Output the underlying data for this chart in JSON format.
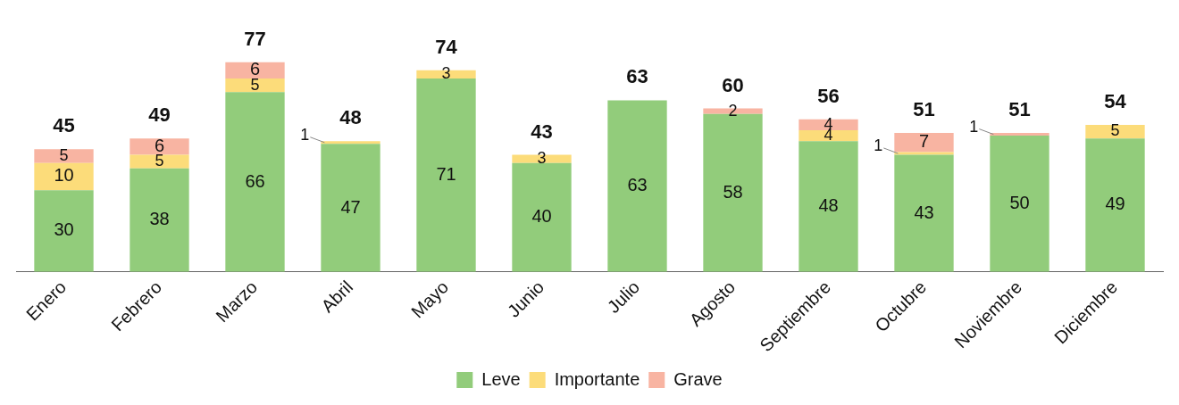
{
  "chart_data": {
    "type": "bar",
    "stacked": true,
    "categories": [
      "Enero",
      "Febrero",
      "Marzo",
      "Abril",
      "Mayo",
      "Junio",
      "Julio",
      "Agosto",
      "Septiembre",
      "Octubre",
      "Noviembre",
      "Diciembre"
    ],
    "series": [
      {
        "name": "Leve",
        "color": "#92cc7b",
        "values": [
          30,
          38,
          66,
          47,
          71,
          40,
          63,
          58,
          48,
          43,
          50,
          49
        ],
        "value_labels": [
          "30",
          "38",
          "66",
          "47",
          "71",
          "40",
          "63",
          "58",
          "48",
          "43",
          "50",
          "49"
        ]
      },
      {
        "name": "Importante",
        "color": "#fcdc7a",
        "values": [
          10,
          5,
          5,
          1,
          3,
          3,
          null,
          null,
          4,
          1,
          null,
          5
        ],
        "value_labels": [
          "10",
          "5",
          "5",
          "1",
          "3",
          "3",
          null,
          null,
          "4",
          "1",
          null,
          "5"
        ]
      },
      {
        "name": "Grave",
        "color": "#f8b4a2",
        "values": [
          5,
          6,
          6,
          null,
          null,
          null,
          null,
          2,
          4,
          7,
          1,
          null
        ],
        "value_labels": [
          "5",
          "6",
          "6",
          null,
          null,
          null,
          null,
          "2",
          "4",
          "7",
          "1",
          null
        ]
      }
    ],
    "totals": [
      "45",
      "49",
      "77",
      "48",
      "74",
      "43",
      "63",
      "60",
      "56",
      "51",
      "51",
      "54"
    ],
    "legend": "bottom",
    "grid": false
  }
}
